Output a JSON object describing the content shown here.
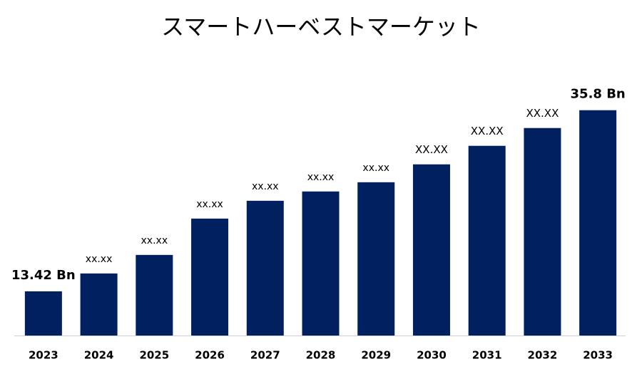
{
  "chart_data": {
    "type": "bar",
    "title": "スマートハーベストマーケット",
    "categories": [
      "2023",
      "2024",
      "2025",
      "2026",
      "2027",
      "2028",
      "2029",
      "2030",
      "2031",
      "2032",
      "2033"
    ],
    "values": [
      13.42,
      15.63,
      17.92,
      22.41,
      24.61,
      25.76,
      26.9,
      29.11,
      31.4,
      33.6,
      35.8
    ],
    "value_labels": [
      "13.42 Bn",
      "xx.xx",
      "xx.xx",
      "xx.xx",
      "xx.xx",
      "xx.xx",
      "xx.xx",
      "XX.XX",
      "XX.XX",
      "XX.XX",
      "35.8 Bn"
    ],
    "color": "#002060",
    "ylim": [
      7.96,
      40
    ]
  }
}
